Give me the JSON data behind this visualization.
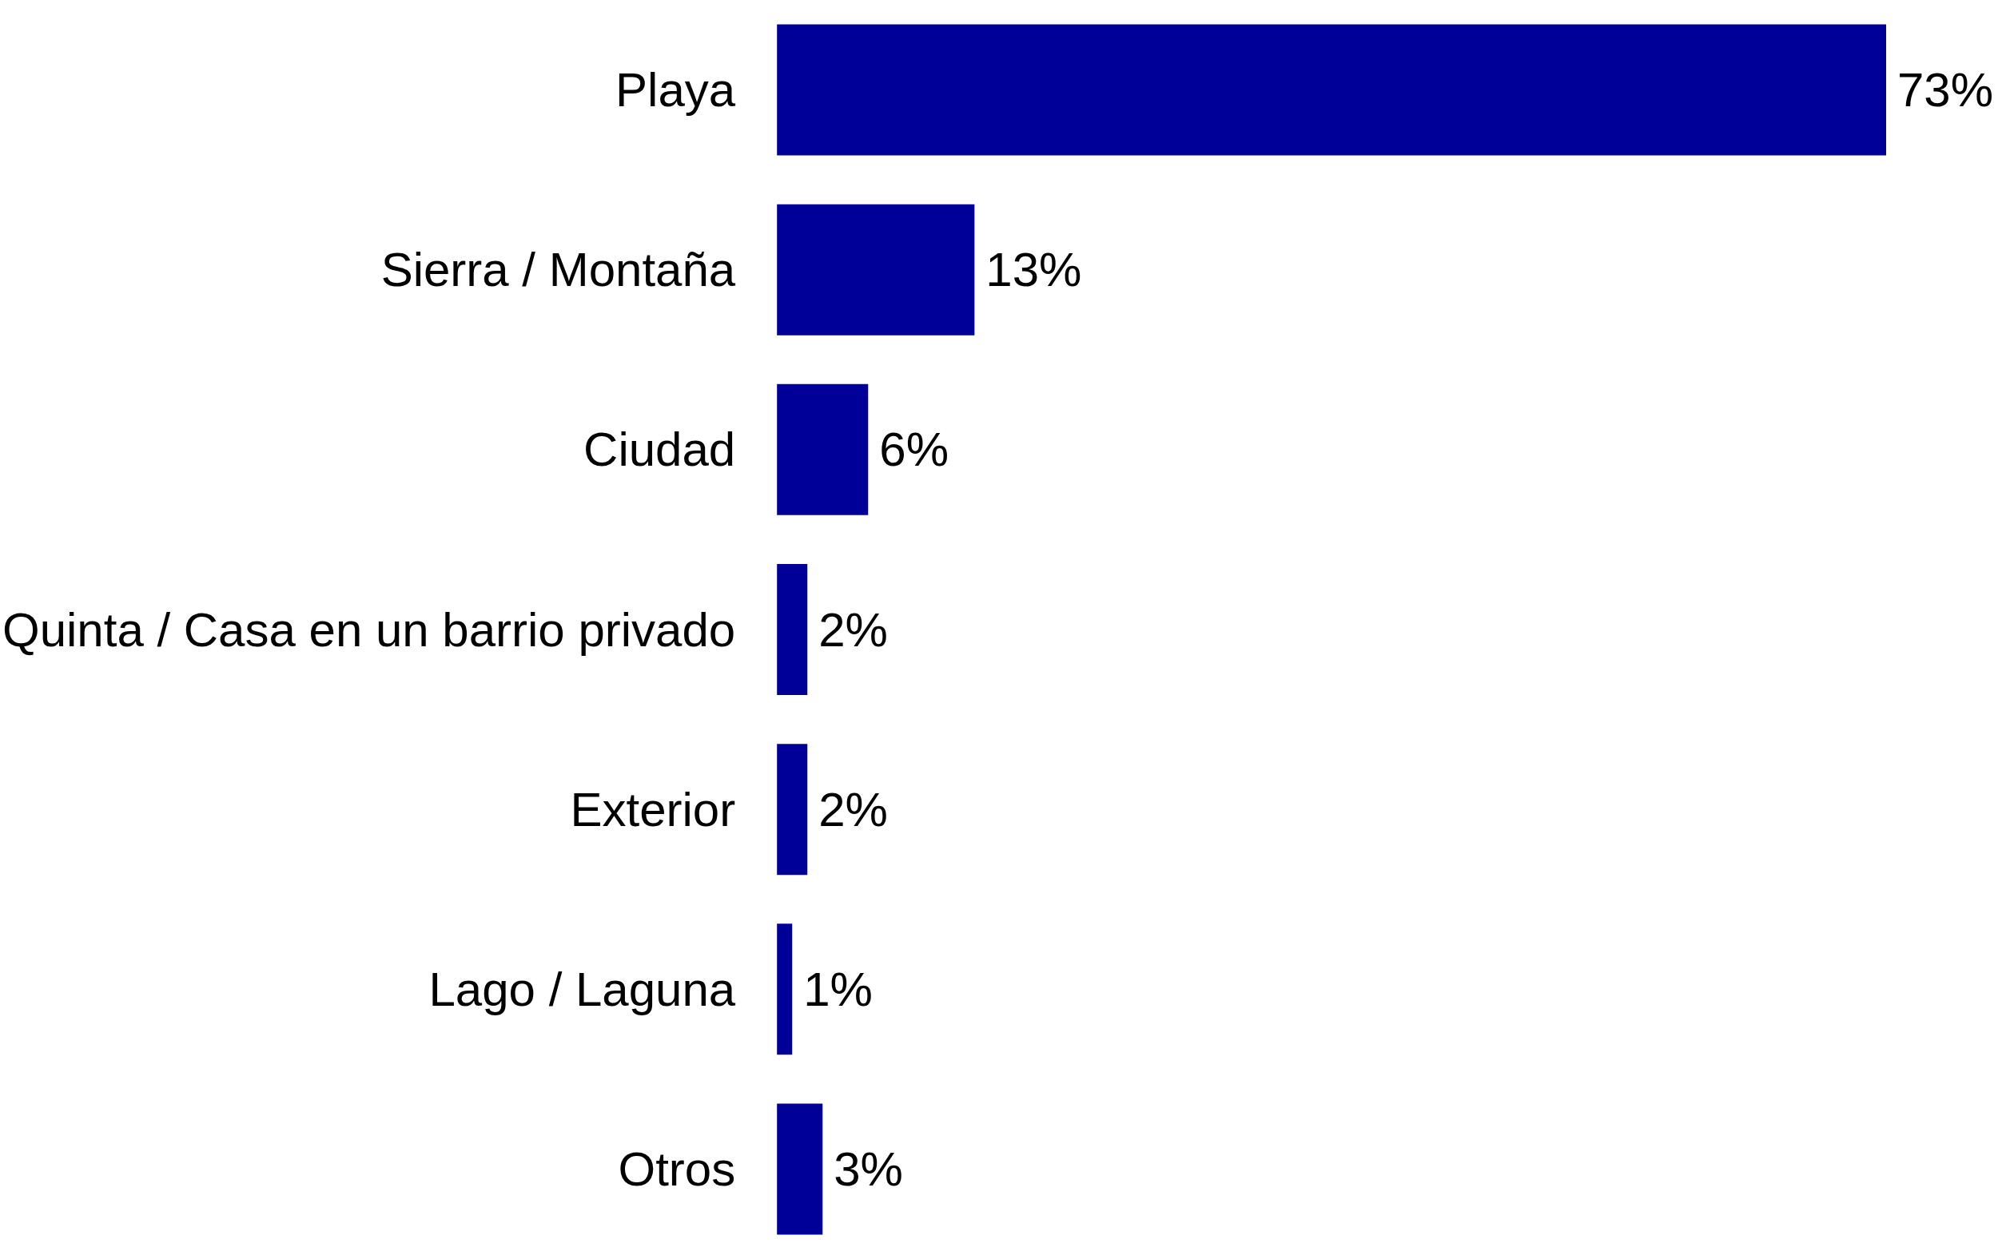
{
  "chart_data": {
    "type": "bar",
    "orientation": "horizontal",
    "categories": [
      "Playa",
      "Sierra / Montaña",
      "Ciudad",
      "Quinta / Casa en un barrio privado",
      "Exterior",
      "Lago / Laguna",
      "Otros"
    ],
    "values": [
      73,
      13,
      6,
      2,
      2,
      1,
      3
    ],
    "value_labels": [
      "73%",
      "13%",
      "6%",
      "2%",
      "2%",
      "1%",
      "3%"
    ],
    "color": "#000099"
  }
}
